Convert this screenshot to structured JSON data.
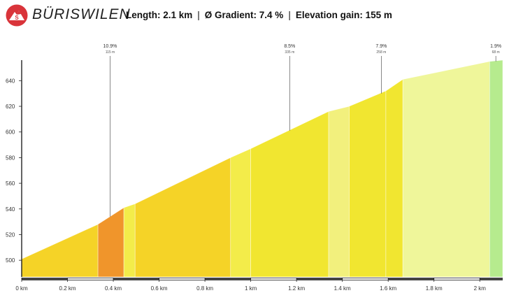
{
  "header": {
    "title": "BÜRISWILEN",
    "length": "Length: 2.1 km",
    "gradient": "Ø Gradient: 7.4 %",
    "gain": "Elevation gain: 155 m",
    "separator": "|"
  },
  "colors": {
    "logo": "#d9343a",
    "axis": "#222222",
    "scale_dark": "#444444",
    "scale_light": "#ffffff"
  },
  "chart_data": {
    "type": "area",
    "xlabel": "",
    "ylabel": "",
    "xlim": [
      0,
      2.1
    ],
    "ylim": [
      487,
      656
    ],
    "x_ticks": [
      {
        "value": 0,
        "label": "0 km"
      },
      {
        "value": 0.2,
        "label": "0.2 km"
      },
      {
        "value": 0.4,
        "label": "0.4 km"
      },
      {
        "value": 0.6,
        "label": "0.6 km"
      },
      {
        "value": 0.8,
        "label": "0.8 km"
      },
      {
        "value": 1.0,
        "label": "1 km"
      },
      {
        "value": 1.2,
        "label": "1.2 km"
      },
      {
        "value": 1.4,
        "label": "1.4 km"
      },
      {
        "value": 1.6,
        "label": "1.6 km"
      },
      {
        "value": 1.8,
        "label": "1.8 km"
      },
      {
        "value": 2.0,
        "label": "2 km"
      }
    ],
    "y_ticks": [
      {
        "value": 500,
        "label": "500"
      },
      {
        "value": 520,
        "label": "520"
      },
      {
        "value": 540,
        "label": "540"
      },
      {
        "value": 560,
        "label": "560"
      },
      {
        "value": 580,
        "label": "580"
      },
      {
        "value": 600,
        "label": "600"
      },
      {
        "value": 620,
        "label": "620"
      },
      {
        "value": 640,
        "label": "640"
      }
    ],
    "segments": [
      {
        "x0": 0.0,
        "x1": 0.333,
        "y0": 501,
        "y1": 528,
        "color": "#f5d327"
      },
      {
        "x0": 0.333,
        "x1": 0.446,
        "y0": 528,
        "y1": 541,
        "color": "#f0952b"
      },
      {
        "x0": 0.446,
        "x1": 0.495,
        "y0": 541,
        "y1": 544,
        "color": "#f3ec4a"
      },
      {
        "x0": 0.495,
        "x1": 0.912,
        "y0": 544,
        "y1": 580,
        "color": "#f5d327"
      },
      {
        "x0": 0.912,
        "x1": 1.0,
        "y0": 580,
        "y1": 587,
        "color": "#f3ec4a"
      },
      {
        "x0": 1.0,
        "x1": 1.34,
        "y0": 587,
        "y1": 616,
        "color": "#f1e630"
      },
      {
        "x0": 1.34,
        "x1": 1.43,
        "y0": 616,
        "y1": 620,
        "color": "#f2f07d"
      },
      {
        "x0": 1.43,
        "x1": 1.59,
        "y0": 620,
        "y1": 632,
        "color": "#f1e630"
      },
      {
        "x0": 1.59,
        "x1": 1.664,
        "y0": 632,
        "y1": 641,
        "color": "#f1e630"
      },
      {
        "x0": 1.664,
        "x1": 2.043,
        "y0": 641,
        "y1": 655,
        "color": "#eff69a"
      },
      {
        "x0": 2.043,
        "x1": 2.1,
        "y0": 655,
        "y1": 656,
        "color": "#b6eb8e"
      }
    ],
    "annotations": [
      {
        "x": 0.386,
        "y": 534,
        "pct": "10.9%",
        "len": "115 m"
      },
      {
        "x": 1.17,
        "y": 601,
        "pct": "8.5%",
        "len": "335 m"
      },
      {
        "x": 1.57,
        "y": 630,
        "pct": "7.9%",
        "len": "258 m"
      },
      {
        "x": 2.07,
        "y": 655,
        "pct": "1.9%",
        "len": "68 m"
      }
    ]
  }
}
